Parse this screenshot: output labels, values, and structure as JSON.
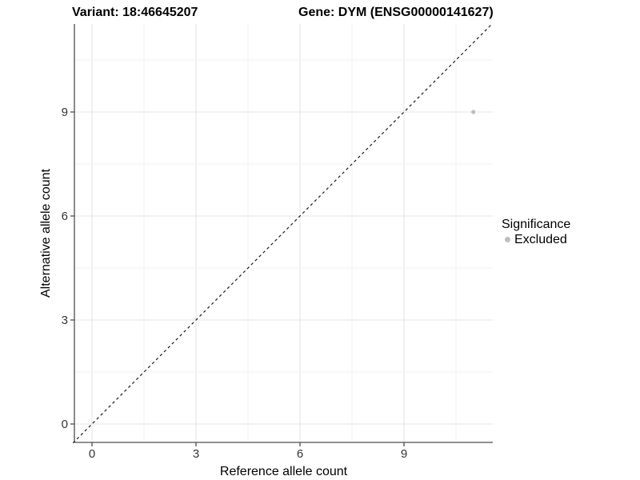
{
  "title": {
    "variant": "Variant: 18:46645207",
    "gene": "Gene: DYM (ENSG00000141627)"
  },
  "chart_data": {
    "type": "scatter",
    "xlabel": "Reference allele count",
    "ylabel": "Alternative allele count",
    "x_ticks": [
      0,
      3,
      6,
      9
    ],
    "y_ticks": [
      0,
      3,
      6,
      9
    ],
    "x_minor_ticks": [
      1.5,
      4.5,
      7.5,
      10.5
    ],
    "y_minor_ticks": [
      1.5,
      4.5,
      7.5,
      10.5
    ],
    "xlim": [
      -0.55,
      11.55
    ],
    "ylim": [
      -0.55,
      11.55
    ],
    "grid": true,
    "points": [
      {
        "x": 11,
        "y": 9,
        "significance": "Excluded"
      }
    ],
    "reference_line": {
      "style": "dashed",
      "equation": "y = x",
      "from": [
        -0.55,
        -0.55
      ],
      "to": [
        11.55,
        11.55
      ]
    },
    "legend": {
      "title": "Significance",
      "position": "right",
      "items": [
        {
          "label": "Excluded",
          "color": "#bebebe"
        }
      ]
    }
  },
  "colors": {
    "point": "#bebebe",
    "grid_major": "#e6e6e6",
    "grid_minor": "#f1f1f1",
    "axis_line": "#4d4d4d",
    "tick_label": "#333333",
    "reference_line": "#1a1a1a",
    "background": "#ffffff"
  }
}
